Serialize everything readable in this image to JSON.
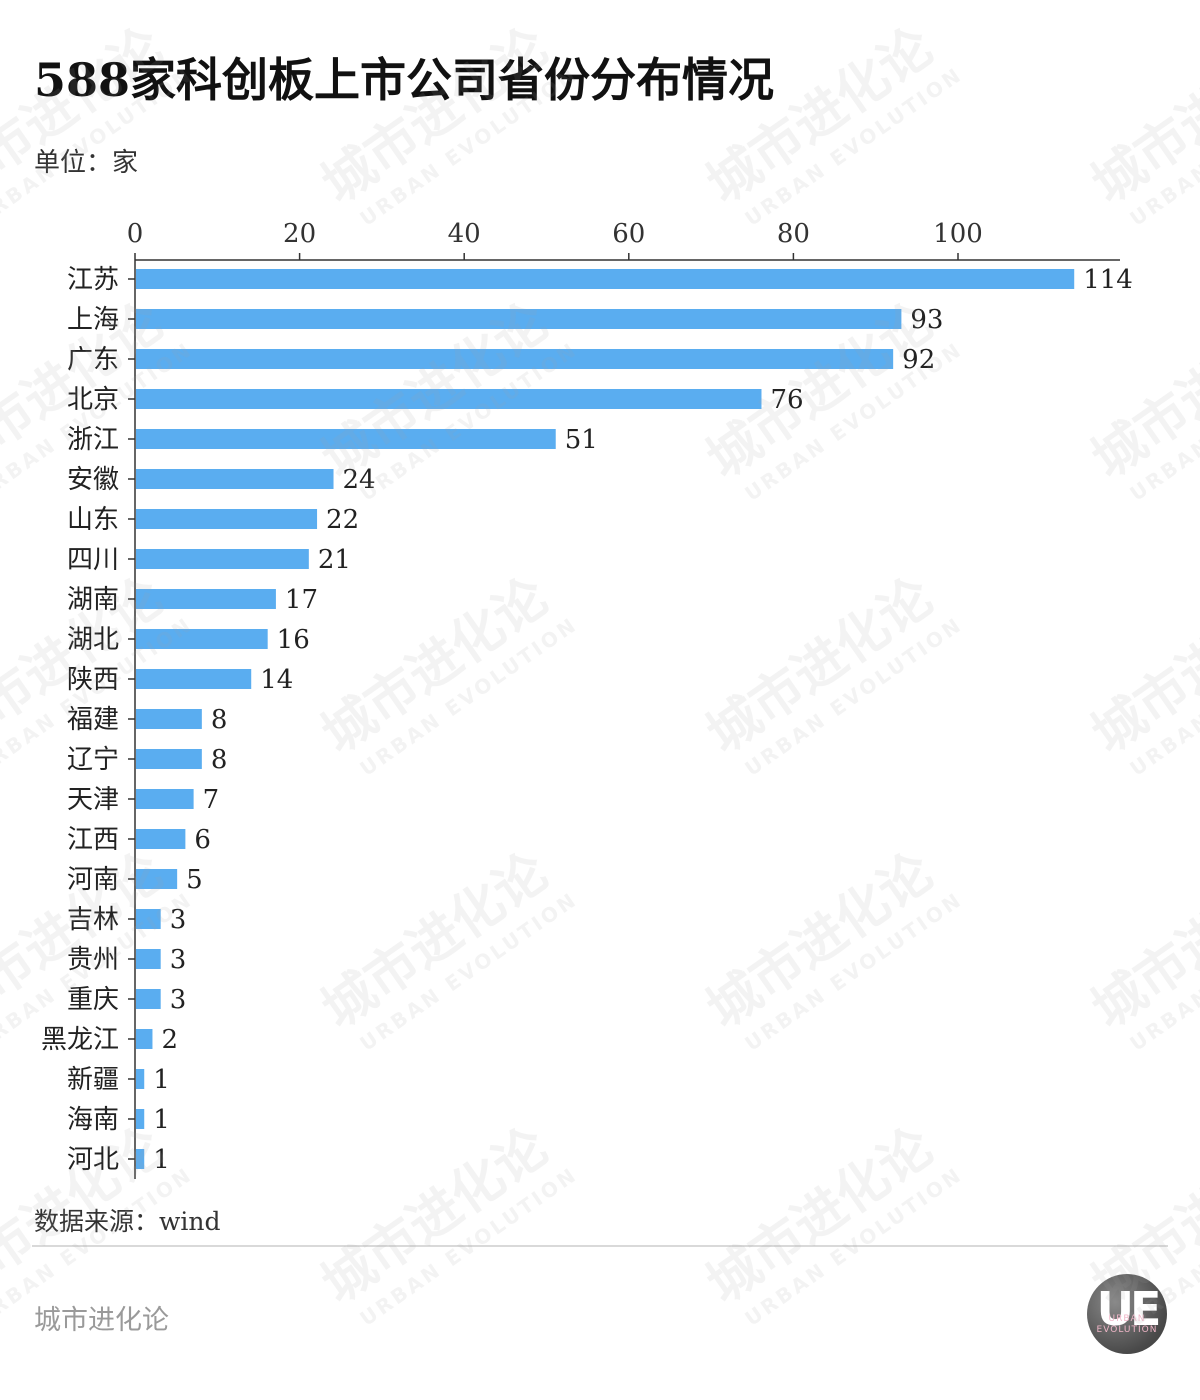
{
  "header": {
    "title": "588家科创板上市公司省份分布情况",
    "unit": "单位：家"
  },
  "footer": {
    "source": "数据来源：wind",
    "brand": "城市进化论",
    "logo_text": "UE",
    "logo_sub_1": "URBAN",
    "logo_sub_2": "EVOLUTION"
  },
  "watermark": {
    "text_cn": "城市进化论",
    "text_en": "URBAN EVOLUTION"
  },
  "colors": {
    "bar": "#5aadf0",
    "axis": "#333333"
  },
  "chart_data": {
    "type": "bar",
    "orientation": "horizontal",
    "xlim": [
      0,
      120
    ],
    "x_ticks": [
      0,
      20,
      40,
      60,
      80,
      100
    ],
    "x_axis_position": "top",
    "grid": false,
    "categories": [
      "江苏",
      "上海",
      "广东",
      "北京",
      "浙江",
      "安徽",
      "山东",
      "四川",
      "湖南",
      "湖北",
      "陕西",
      "福建",
      "辽宁",
      "天津",
      "江西",
      "河南",
      "吉林",
      "贵州",
      "重庆",
      "黑龙江",
      "新疆",
      "海南",
      "河北"
    ],
    "values": [
      114,
      93,
      92,
      76,
      51,
      24,
      22,
      21,
      17,
      16,
      14,
      8,
      8,
      7,
      6,
      5,
      3,
      3,
      3,
      2,
      1,
      1,
      1
    ]
  }
}
